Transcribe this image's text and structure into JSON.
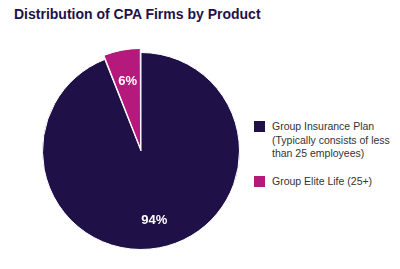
{
  "chart_data": {
    "type": "pie",
    "title": "Distribution of CPA Firms by Product",
    "categories": [
      "Group Insurance Plan (Typically consists of less than 25 employees)",
      "Group Elite Life (25+)"
    ],
    "values": [
      94,
      6
    ],
    "value_labels": [
      "94%",
      "6%"
    ],
    "colors": [
      "#1f1147",
      "#b5197c"
    ],
    "data_labels": true,
    "legend": "right"
  }
}
